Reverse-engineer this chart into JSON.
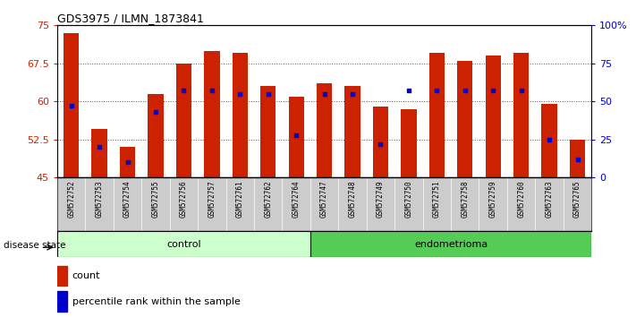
{
  "title": "GDS3975 / ILMN_1873841",
  "samples": [
    "GSM572752",
    "GSM572753",
    "GSM572754",
    "GSM572755",
    "GSM572756",
    "GSM572757",
    "GSM572761",
    "GSM572762",
    "GSM572764",
    "GSM572747",
    "GSM572748",
    "GSM572749",
    "GSM572750",
    "GSM572751",
    "GSM572758",
    "GSM572759",
    "GSM572760",
    "GSM572763",
    "GSM572765"
  ],
  "counts": [
    73.5,
    54.5,
    51.0,
    61.5,
    67.5,
    70.0,
    69.5,
    63.0,
    61.0,
    63.5,
    63.0,
    59.0,
    58.5,
    69.5,
    68.0,
    69.0,
    69.5,
    59.5,
    52.5
  ],
  "percentiles": [
    47,
    20,
    10,
    43,
    57,
    57,
    55,
    55,
    28,
    55,
    55,
    22,
    57,
    57,
    57,
    57,
    57,
    25,
    12
  ],
  "bar_bottom": 45,
  "ylim_left": [
    45,
    75
  ],
  "ylim_right": [
    0,
    100
  ],
  "yticks_left": [
    45,
    52.5,
    60,
    67.5,
    75
  ],
  "yticks_right": [
    0,
    25,
    50,
    75,
    100
  ],
  "ytick_labels_left": [
    "45",
    "52.5",
    "60",
    "67.5",
    "75"
  ],
  "ytick_labels_right": [
    "0",
    "25",
    "50",
    "75",
    "100%"
  ],
  "bar_color": "#cc2200",
  "dot_color": "#0000cc",
  "grid_color": "#555555",
  "control_samples": 9,
  "control_label": "control",
  "endometrioma_label": "endometrioma",
  "disease_state_label": "disease state",
  "legend_count": "count",
  "legend_percentile": "percentile rank within the sample",
  "control_color": "#ccffcc",
  "endometrioma_color": "#55cc55",
  "xtick_bg_color": "#cccccc",
  "bar_width": 0.55
}
